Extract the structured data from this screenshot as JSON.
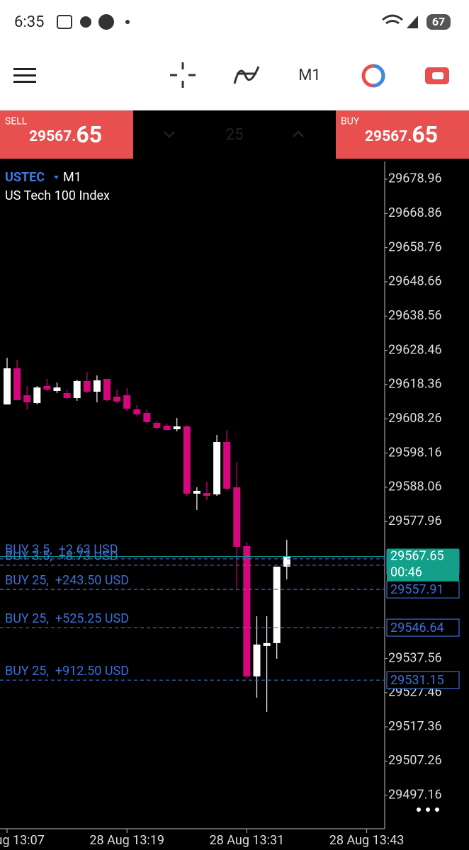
{
  "status_bar": {
    "time": "6:35",
    "battery": "67"
  },
  "toolbar": {
    "timeframe": "M1"
  },
  "trade_panel": {
    "sell": {
      "label": "SELL",
      "price_main": "29567.",
      "price_big": "65"
    },
    "volume": "25",
    "buy": {
      "label": "BUY",
      "price_main": "29567.",
      "price_big": "65"
    }
  },
  "chart_data": {
    "type": "candlestick",
    "symbol": "USTEC",
    "timeframe": "M1",
    "description": "US Tech 100 Index",
    "x": [
      "28 Aug 13:07",
      "28 Aug 13:08",
      "28 Aug 13:09",
      "28 Aug 13:10",
      "28 Aug 13:11",
      "28 Aug 13:12",
      "28 Aug 13:13",
      "28 Aug 13:14",
      "28 Aug 13:15",
      "28 Aug 13:16",
      "28 Aug 13:17",
      "28 Aug 13:18",
      "28 Aug 13:19",
      "28 Aug 13:20",
      "28 Aug 13:21",
      "28 Aug 13:22",
      "28 Aug 13:23",
      "28 Aug 13:24",
      "28 Aug 13:25",
      "28 Aug 13:26",
      "28 Aug 13:27",
      "28 Aug 13:28",
      "28 Aug 13:29",
      "28 Aug 13:30",
      "28 Aug 13:31",
      "28 Aug 13:32",
      "28 Aug 13:33",
      "28 Aug 13:34",
      "28 Aug 13:35"
    ],
    "open": [
      29612.5,
      29623.16,
      29615.22,
      29612.92,
      29617.93,
      29616.47,
      29615.84,
      29614.38,
      29619.4,
      29616.26,
      29620.02,
      29614.8,
      29615.22,
      29611.04,
      29609.99,
      29607.07,
      29606.23,
      29605.19,
      29606.02,
      29586.17,
      29586.37,
      29585.96,
      29601.42,
      29588.05,
      29570.7,
      29532.25,
      29541.24,
      29542.07,
      29564.64
    ],
    "high": [
      29626.29,
      29625.67,
      29617.93,
      29617.93,
      29620.02,
      29618.98,
      29616.89,
      29619.82,
      29622.11,
      29621.07,
      29620.02,
      29616.89,
      29617.31,
      29612.29,
      29611.04,
      29607.69,
      29606.86,
      29608.53,
      29606.44,
      29588.05,
      29589.72,
      29603.51,
      29604.98,
      29595.57,
      29571.95,
      29550.01,
      29550.01,
      29564.64,
      29572.58
    ],
    "low": [
      29612.5,
      29613.75,
      29611.04,
      29612.5,
      29616.47,
      29615.84,
      29613.96,
      29613.55,
      29615.84,
      29613.13,
      29613.34,
      29612.71,
      29610.62,
      29608.95,
      29606.86,
      29605.19,
      29604.77,
      29604.56,
      29585.54,
      29581.36,
      29584.29,
      29585.54,
      29587.21,
      29558.37,
      29531.62,
      29525.98,
      29521.8,
      29537.47,
      29560.88
    ],
    "close": [
      29623.16,
      29613.75,
      29613.13,
      29617.51,
      29616.89,
      29617.51,
      29614.38,
      29619.4,
      29616.26,
      29619.61,
      29613.75,
      29613.34,
      29611.25,
      29609.58,
      29607.27,
      29605.6,
      29604.98,
      29606.02,
      29586.17,
      29587.0,
      29585.54,
      29601.42,
      29587.63,
      29570.49,
      29532.25,
      29541.65,
      29542.07,
      29564.64,
      29567.65
    ],
    "up_color": "#ffffff",
    "down_color": "#d4077c",
    "ylim": [
      29487.3,
      29684.18
    ],
    "yticks": [
      29678.96,
      29668.86,
      29658.76,
      29648.66,
      29638.56,
      29628.46,
      29618.36,
      29608.26,
      29598.16,
      29588.06,
      29577.96,
      29537.56,
      29527.46,
      29517.36,
      29507.26,
      29497.16
    ],
    "xticks": [
      "28 Aug 13:07",
      "28 Aug 13:19",
      "28 Aug 13:31",
      "28 Aug 13:43"
    ],
    "positions": [
      {
        "label": "BUY 3.5,  +2.63 USD",
        "price": 29566.94
      },
      {
        "label": "BUY 3.5,  +8.73 USD",
        "price": 29565.06
      },
      {
        "label": "BUY 25,  +243.50 USD",
        "price": 29557.91
      },
      {
        "label": "BUY 25,  +525.25 USD",
        "price": 29546.64
      },
      {
        "label": "BUY 25,  +912.50 USD",
        "price": 29531.15
      }
    ],
    "position_color": "#3b6fd6",
    "bid": 29567.65,
    "bid_color": "#12a08a",
    "countdown": "00:46"
  }
}
